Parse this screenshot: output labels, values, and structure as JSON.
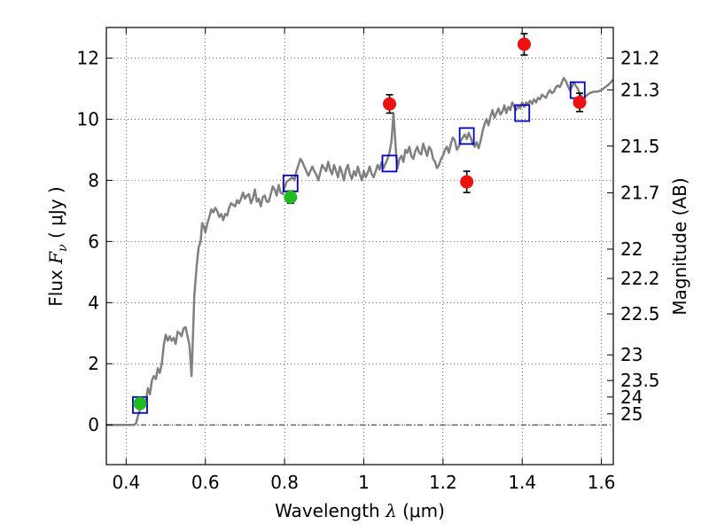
{
  "chart_data": {
    "type": "scatter",
    "xlabel_text": "Wavelength",
    "xlabel_symbol": "λ",
    "xlabel_unit": "(μm)",
    "ylabel_text": "Flux",
    "ylabel_symbol": "F",
    "ylabel_subscript": "ν",
    "ylabel_unit": "( μJy )",
    "y2label": "Magnitude (AB)",
    "xlim": [
      0.35,
      1.63
    ],
    "ylim": [
      -1.3,
      13.0
    ],
    "grid": true,
    "grid_style": "dotted",
    "x_ticks": [
      0.4,
      0.6,
      0.8,
      1.0,
      1.2,
      1.4,
      1.6
    ],
    "x_tick_labels": [
      "0.4",
      "0.6",
      "0.8",
      "1",
      "1.2",
      "1.4",
      "1.6"
    ],
    "y_ticks": [
      0,
      2,
      4,
      6,
      8,
      10,
      12
    ],
    "y_tick_labels": [
      "0",
      "2",
      "4",
      "6",
      "8",
      "10",
      "12"
    ],
    "magnitude_ticks": [
      {
        "label": "21.2",
        "flux": 12.0
      },
      {
        "label": "21.3",
        "flux": 10.96
      },
      {
        "label": "21.5",
        "flux": 9.12
      },
      {
        "label": "21.7",
        "flux": 7.59
      },
      {
        "label": "22",
        "flux": 5.75
      },
      {
        "label": "22.2",
        "flux": 4.79
      },
      {
        "label": "22.5",
        "flux": 3.63
      },
      {
        "label": "23",
        "flux": 2.29
      },
      {
        "label": "23.5",
        "flux": 1.45
      },
      {
        "label": "24",
        "flux": 0.91
      },
      {
        "label": "25",
        "flux": 0.36
      }
    ],
    "zero_line": 0,
    "series": [
      {
        "kind": "sed_model_line",
        "color": "#808080",
        "points": [
          [
            0.35,
            0.0
          ],
          [
            0.42,
            0.0
          ],
          [
            0.425,
            0.05
          ],
          [
            0.43,
            0.3
          ],
          [
            0.435,
            0.5
          ],
          [
            0.44,
            0.6
          ],
          [
            0.445,
            0.65
          ],
          [
            0.45,
            0.8
          ],
          [
            0.455,
            1.2
          ],
          [
            0.46,
            1.0
          ],
          [
            0.465,
            1.45
          ],
          [
            0.47,
            1.6
          ],
          [
            0.475,
            1.5
          ],
          [
            0.48,
            1.85
          ],
          [
            0.485,
            1.7
          ],
          [
            0.49,
            2.0
          ],
          [
            0.495,
            2.6
          ],
          [
            0.5,
            2.95
          ],
          [
            0.505,
            2.75
          ],
          [
            0.51,
            2.9
          ],
          [
            0.515,
            2.75
          ],
          [
            0.52,
            2.85
          ],
          [
            0.525,
            2.65
          ],
          [
            0.53,
            3.05
          ],
          [
            0.535,
            3.0
          ],
          [
            0.54,
            2.9
          ],
          [
            0.545,
            3.15
          ],
          [
            0.55,
            3.2
          ],
          [
            0.555,
            2.9
          ],
          [
            0.56,
            2.6
          ],
          [
            0.565,
            1.6
          ],
          [
            0.568,
            2.6
          ],
          [
            0.572,
            4.2
          ],
          [
            0.578,
            5.2
          ],
          [
            0.583,
            5.8
          ],
          [
            0.588,
            6.0
          ],
          [
            0.592,
            6.6
          ],
          [
            0.596,
            6.5
          ],
          [
            0.6,
            6.3
          ],
          [
            0.605,
            6.6
          ],
          [
            0.61,
            6.8
          ],
          [
            0.615,
            7.05
          ],
          [
            0.62,
            6.95
          ],
          [
            0.625,
            7.1
          ],
          [
            0.63,
            7.0
          ],
          [
            0.635,
            6.8
          ],
          [
            0.64,
            6.9
          ],
          [
            0.645,
            6.7
          ],
          [
            0.65,
            6.9
          ],
          [
            0.655,
            6.85
          ],
          [
            0.66,
            7.1
          ],
          [
            0.665,
            7.25
          ],
          [
            0.67,
            7.2
          ],
          [
            0.675,
            7.15
          ],
          [
            0.68,
            7.35
          ],
          [
            0.685,
            7.25
          ],
          [
            0.69,
            7.4
          ],
          [
            0.695,
            7.6
          ],
          [
            0.7,
            7.4
          ],
          [
            0.705,
            7.5
          ],
          [
            0.71,
            7.55
          ],
          [
            0.715,
            7.25
          ],
          [
            0.72,
            7.4
          ],
          [
            0.725,
            7.7
          ],
          [
            0.73,
            7.3
          ],
          [
            0.735,
            7.4
          ],
          [
            0.74,
            7.15
          ],
          [
            0.745,
            7.45
          ],
          [
            0.75,
            7.5
          ],
          [
            0.755,
            7.3
          ],
          [
            0.76,
            7.3
          ],
          [
            0.765,
            7.55
          ],
          [
            0.77,
            7.8
          ],
          [
            0.775,
            7.7
          ],
          [
            0.78,
            7.5
          ],
          [
            0.785,
            7.85
          ],
          [
            0.79,
            7.6
          ],
          [
            0.795,
            7.55
          ],
          [
            0.8,
            7.75
          ],
          [
            0.805,
            7.95
          ],
          [
            0.81,
            8.0
          ],
          [
            0.815,
            8.05
          ],
          [
            0.82,
            8.1
          ],
          [
            0.825,
            8.0
          ],
          [
            0.83,
            8.3
          ],
          [
            0.835,
            8.5
          ],
          [
            0.84,
            8.7
          ],
          [
            0.845,
            8.6
          ],
          [
            0.85,
            8.45
          ],
          [
            0.855,
            8.3
          ],
          [
            0.86,
            8.15
          ],
          [
            0.865,
            8.3
          ],
          [
            0.87,
            8.45
          ],
          [
            0.875,
            8.3
          ],
          [
            0.88,
            8.2
          ],
          [
            0.885,
            8.0
          ],
          [
            0.89,
            8.25
          ],
          [
            0.895,
            8.5
          ],
          [
            0.9,
            8.4
          ],
          [
            0.905,
            8.3
          ],
          [
            0.91,
            8.6
          ],
          [
            0.915,
            8.35
          ],
          [
            0.92,
            8.2
          ],
          [
            0.925,
            8.5
          ],
          [
            0.93,
            8.3
          ],
          [
            0.935,
            8.1
          ],
          [
            0.94,
            8.45
          ],
          [
            0.945,
            8.25
          ],
          [
            0.95,
            8.0
          ],
          [
            0.955,
            8.35
          ],
          [
            0.96,
            8.5
          ],
          [
            0.965,
            8.2
          ],
          [
            0.97,
            8.05
          ],
          [
            0.975,
            8.3
          ],
          [
            0.98,
            8.15
          ],
          [
            0.985,
            8.45
          ],
          [
            0.99,
            8.2
          ],
          [
            0.995,
            8.0
          ],
          [
            1.0,
            8.3
          ],
          [
            1.005,
            8.1
          ],
          [
            1.01,
            8.25
          ],
          [
            1.015,
            8.45
          ],
          [
            1.02,
            8.2
          ],
          [
            1.025,
            8.1
          ],
          [
            1.03,
            8.3
          ],
          [
            1.035,
            8.5
          ],
          [
            1.04,
            8.35
          ],
          [
            1.045,
            8.6
          ],
          [
            1.05,
            8.4
          ],
          [
            1.055,
            8.55
          ],
          [
            1.06,
            8.7
          ],
          [
            1.065,
            8.9
          ],
          [
            1.07,
            9.3
          ],
          [
            1.075,
            10.2
          ],
          [
            1.078,
            9.6
          ],
          [
            1.082,
            8.8
          ],
          [
            1.085,
            8.4
          ],
          [
            1.09,
            8.7
          ],
          [
            1.095,
            8.8
          ],
          [
            1.1,
            8.6
          ],
          [
            1.105,
            9.0
          ],
          [
            1.11,
            8.9
          ],
          [
            1.115,
            9.1
          ],
          [
            1.12,
            8.8
          ],
          [
            1.125,
            8.7
          ],
          [
            1.13,
            8.95
          ],
          [
            1.135,
            9.1
          ],
          [
            1.14,
            8.9
          ],
          [
            1.145,
            8.85
          ],
          [
            1.15,
            9.2
          ],
          [
            1.155,
            9.0
          ],
          [
            1.16,
            8.8
          ],
          [
            1.165,
            9.1
          ],
          [
            1.17,
            9.0
          ],
          [
            1.175,
            8.7
          ],
          [
            1.18,
            8.6
          ],
          [
            1.185,
            8.4
          ],
          [
            1.19,
            8.5
          ],
          [
            1.195,
            8.7
          ],
          [
            1.2,
            8.8
          ],
          [
            1.205,
            9.0
          ],
          [
            1.21,
            9.1
          ],
          [
            1.215,
            8.9
          ],
          [
            1.22,
            9.2
          ],
          [
            1.225,
            9.4
          ],
          [
            1.23,
            9.3
          ],
          [
            1.235,
            9.0
          ],
          [
            1.24,
            9.1
          ],
          [
            1.245,
            9.3
          ],
          [
            1.25,
            9.4
          ],
          [
            1.255,
            9.5
          ],
          [
            1.26,
            9.35
          ],
          [
            1.265,
            9.55
          ],
          [
            1.27,
            9.4
          ],
          [
            1.275,
            9.2
          ],
          [
            1.28,
            9.1
          ],
          [
            1.285,
            9.25
          ],
          [
            1.29,
            9.05
          ],
          [
            1.295,
            9.3
          ],
          [
            1.3,
            9.6
          ],
          [
            1.305,
            9.85
          ],
          [
            1.31,
            10.0
          ],
          [
            1.315,
            9.8
          ],
          [
            1.32,
            10.1
          ],
          [
            1.325,
            10.3
          ],
          [
            1.33,
            10.05
          ],
          [
            1.335,
            10.2
          ],
          [
            1.34,
            10.35
          ],
          [
            1.345,
            10.15
          ],
          [
            1.35,
            10.25
          ],
          [
            1.355,
            10.45
          ],
          [
            1.36,
            10.2
          ],
          [
            1.365,
            10.4
          ],
          [
            1.37,
            10.3
          ],
          [
            1.375,
            10.55
          ],
          [
            1.38,
            10.4
          ],
          [
            1.385,
            10.3
          ],
          [
            1.39,
            10.45
          ],
          [
            1.395,
            10.35
          ],
          [
            1.4,
            10.55
          ],
          [
            1.405,
            10.4
          ],
          [
            1.41,
            10.55
          ],
          [
            1.415,
            10.5
          ],
          [
            1.42,
            10.6
          ],
          [
            1.425,
            10.5
          ],
          [
            1.43,
            10.65
          ],
          [
            1.435,
            10.55
          ],
          [
            1.44,
            10.7
          ],
          [
            1.445,
            10.65
          ],
          [
            1.45,
            10.8
          ],
          [
            1.455,
            10.75
          ],
          [
            1.46,
            10.7
          ],
          [
            1.465,
            10.85
          ],
          [
            1.47,
            10.95
          ],
          [
            1.475,
            10.85
          ],
          [
            1.48,
            10.9
          ],
          [
            1.485,
            11.05
          ],
          [
            1.49,
            11.1
          ],
          [
            1.495,
            11.05
          ],
          [
            1.5,
            11.2
          ],
          [
            1.505,
            11.35
          ],
          [
            1.51,
            11.25
          ],
          [
            1.515,
            11.1
          ],
          [
            1.52,
            10.95
          ],
          [
            1.525,
            11.05
          ],
          [
            1.53,
            11.2
          ],
          [
            1.535,
            11.1
          ],
          [
            1.54,
            11.0
          ],
          [
            1.545,
            10.85
          ],
          [
            1.55,
            10.75
          ],
          [
            1.555,
            10.65
          ],
          [
            1.56,
            10.75
          ],
          [
            1.565,
            10.8
          ],
          [
            1.57,
            10.85
          ],
          [
            1.58,
            10.9
          ],
          [
            1.59,
            10.9
          ],
          [
            1.6,
            10.95
          ],
          [
            1.61,
            11.05
          ],
          [
            1.62,
            11.15
          ],
          [
            1.63,
            11.3
          ]
        ]
      },
      {
        "kind": "model_photometry_squares",
        "color": "#0000cc",
        "points": [
          {
            "x": 0.435,
            "y": 0.65
          },
          {
            "x": 0.815,
            "y": 7.9
          },
          {
            "x": 1.065,
            "y": 8.55
          },
          {
            "x": 1.26,
            "y": 9.45
          },
          {
            "x": 1.4,
            "y": 10.2
          },
          {
            "x": 1.54,
            "y": 10.95
          }
        ]
      },
      {
        "kind": "observed_points_green",
        "color": "#22bb22",
        "points": [
          {
            "x": 0.435,
            "y": 0.7,
            "err": 0.1
          },
          {
            "x": 0.815,
            "y": 7.45,
            "err": 0.2
          }
        ]
      },
      {
        "kind": "observed_points_red",
        "color": "#ee1111",
        "points": [
          {
            "x": 1.065,
            "y": 10.5,
            "err": 0.3
          },
          {
            "x": 1.26,
            "y": 7.95,
            "err": 0.35
          },
          {
            "x": 1.405,
            "y": 12.45,
            "err": 0.35
          },
          {
            "x": 1.545,
            "y": 10.55,
            "err": 0.3
          }
        ]
      }
    ]
  }
}
